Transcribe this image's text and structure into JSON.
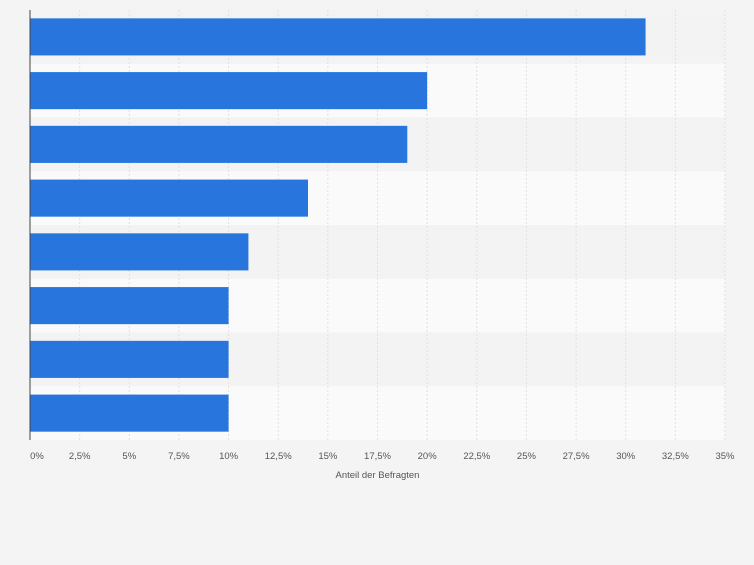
{
  "chart_data": {
    "type": "bar",
    "orientation": "horizontal",
    "categories": [
      "",
      "",
      "",
      "",
      "",
      "",
      "",
      ""
    ],
    "values": [
      31,
      20,
      19,
      14,
      11,
      10,
      10,
      10
    ],
    "xlabel": "Anteil der Befragten",
    "ylabel": "",
    "xlim": [
      0,
      35
    ],
    "xticks": [
      0,
      2.5,
      5,
      7.5,
      10,
      12.5,
      15,
      17.5,
      20,
      22.5,
      25,
      27.5,
      30,
      32.5,
      35
    ],
    "xtick_labels": [
      "0%",
      "2,5%",
      "5%",
      "7,5%",
      "10%",
      "12,5%",
      "15%",
      "17,5%",
      "20%",
      "22,5%",
      "25%",
      "27,5%",
      "30%",
      "32,5%",
      "35%"
    ],
    "grid": true,
    "legend": "none",
    "colors": {
      "bar": "#2876dd",
      "background": "#f4f4f4",
      "band_light": "#fafafa",
      "band_dark": "#f3f3f3",
      "grid": "#e1e1e1",
      "axis": "#444444",
      "tick_text": "#555555"
    }
  }
}
